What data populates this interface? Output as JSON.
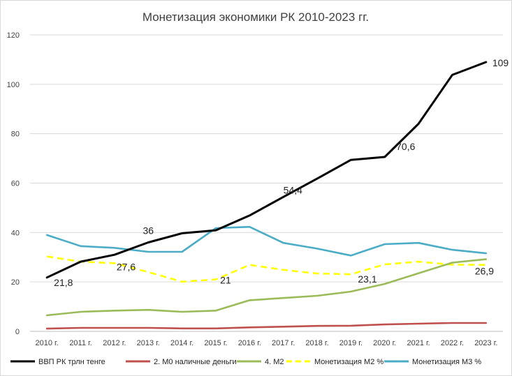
{
  "chart_data": {
    "type": "line",
    "title": "Монетизация экономики РК 2010-2023 гг.",
    "xlabel": "",
    "ylabel": "",
    "ylim": [
      0,
      120
    ],
    "yticks": [
      0,
      20,
      40,
      60,
      80,
      100,
      120
    ],
    "grid": true,
    "legend_position": "bottom",
    "categories": [
      "2010 г.",
      "2011 г.",
      "2012 г.",
      "2013 г.",
      "2014 г.",
      "2015 г.",
      "2016 г.",
      "2017 г.",
      "2018 г.",
      "2019 г.",
      "2020 г.",
      "2021 г.",
      "2022 г.",
      "2023 г."
    ],
    "series": [
      {
        "name": "ВВП РК трлн тенге",
        "color": "#000000",
        "dash": "solid",
        "values": [
          21.8,
          28.2,
          31.0,
          36.0,
          39.7,
          40.9,
          46.9,
          54.4,
          61.8,
          69.4,
          70.6,
          84.0,
          103.8,
          109.0
        ]
      },
      {
        "name": "2. М0 наличные деньги",
        "color": "#c0504d",
        "dash": "solid",
        "values": [
          1.1,
          1.4,
          1.4,
          1.4,
          1.2,
          1.2,
          1.6,
          1.9,
          2.2,
          2.3,
          2.8,
          3.1,
          3.4,
          3.4
        ]
      },
      {
        "name": "4. М2",
        "color": "#9bbb59",
        "dash": "solid",
        "values": [
          6.5,
          7.9,
          8.4,
          8.7,
          7.9,
          8.4,
          12.6,
          13.5,
          14.4,
          16.1,
          19.2,
          23.5,
          27.8,
          29.2
        ]
      },
      {
        "name": "Монетизация М2 %",
        "color": "#ffff00",
        "dash": "dashed",
        "values": [
          30.3,
          28.2,
          27.6,
          24.0,
          20.1,
          21.0,
          26.9,
          24.9,
          23.4,
          23.1,
          27.1,
          28.2,
          27.0,
          26.9
        ]
      },
      {
        "name": "Монетизация М3 %",
        "color": "#4bacc6",
        "dash": "solid",
        "values": [
          39.0,
          34.5,
          33.8,
          32.2,
          32.2,
          41.8,
          42.3,
          35.8,
          33.5,
          30.7,
          35.3,
          35.8,
          33.0,
          31.6
        ]
      }
    ],
    "annotations": [
      {
        "series": 0,
        "index": 0,
        "text": "21,8"
      },
      {
        "series": 0,
        "index": 3,
        "text": "36"
      },
      {
        "series": 0,
        "index": 7,
        "text": "54,4"
      },
      {
        "series": 0,
        "index": 10,
        "text": "70,6"
      },
      {
        "series": 0,
        "index": 13,
        "text": "109"
      },
      {
        "series": 3,
        "index": 2,
        "text": "27,6"
      },
      {
        "series": 3,
        "index": 5,
        "text": "21"
      },
      {
        "series": 3,
        "index": 9,
        "text": "23,1"
      },
      {
        "series": 3,
        "index": 13,
        "text": "26,9"
      }
    ]
  }
}
